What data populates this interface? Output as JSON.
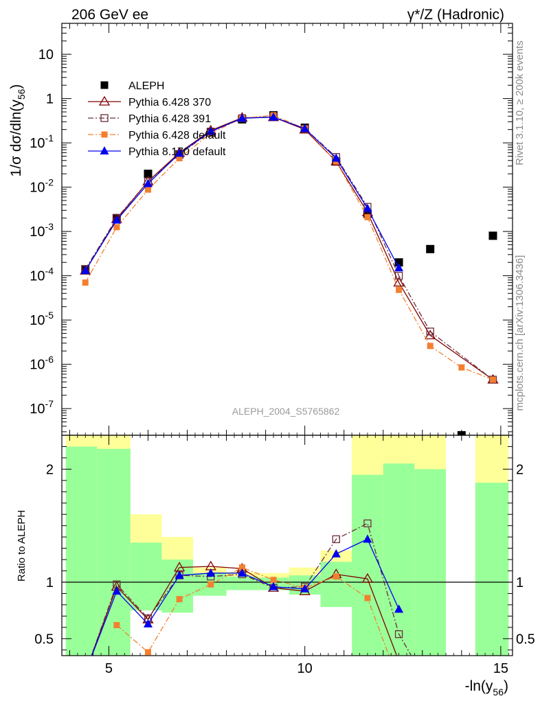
{
  "chart_data": {
    "type": "scatter",
    "title_left": "206 GeV ee",
    "title_right": "γ*/Z (Hadronic)",
    "ylabel": "1/σ  dσ/dln(y",
    "ylabel_sub": "56",
    "ylabel_close": ")",
    "xlabel": "-ln(y",
    "xlabel_sub": "56",
    "xlabel_close": ")",
    "ratio_ylabel": "Ratio to ALEPH",
    "watermark": "ALEPH_2004_S5765862",
    "side_label_top": "Rivet 3.1.10, ≥ 200k events",
    "side_label_bottom": "mcplots.cern.ch [arXiv:1306.3436]",
    "yscale": "log",
    "ylim": [
      2.5e-08,
      50
    ],
    "xlim": [
      3.8,
      15.3
    ],
    "ratio_ylim": [
      0.35,
      2.3
    ],
    "x_ticks": [
      5,
      10,
      15
    ],
    "x_tick_labels": [
      "5",
      "10",
      "15"
    ],
    "y_tick_labels": [
      "10",
      "1",
      "10^-1",
      "10^-2",
      "10^-3",
      "10^-4",
      "10^-5",
      "10^-6",
      "10^-7"
    ],
    "ratio_ticks": [
      0.5,
      1,
      2
    ],
    "ratio_tick_labels": [
      "0.5",
      "1",
      "2"
    ],
    "legend_position": "top-left",
    "series": [
      {
        "name": "ALEPH",
        "color": "#000000",
        "marker": "filled-square",
        "x": [
          4.4,
          5.2,
          6.0,
          6.8,
          7.6,
          8.4,
          9.2,
          10.0,
          10.8,
          11.6,
          12.4,
          13.2,
          14.0,
          14.8
        ],
        "y": [
          0.00014,
          0.002,
          0.02,
          0.055,
          0.17,
          0.34,
          0.42,
          0.22,
          0.038,
          0.0025,
          0.0002,
          0.0004,
          2.5e-08,
          0.0008
        ]
      },
      {
        "name": "Pythia 6.428 370",
        "color": "#800000",
        "marker": "open-triangle",
        "line": "solid",
        "x": [
          4.4,
          5.2,
          6.0,
          6.8,
          7.6,
          8.4,
          9.2,
          10.0,
          10.8,
          11.6,
          12.4,
          13.2,
          14.8
        ],
        "y": [
          0.00013,
          0.0019,
          0.0135,
          0.06,
          0.19,
          0.37,
          0.38,
          0.2,
          0.038,
          0.0027,
          7e-05,
          4.5e-06,
          4.5e-07
        ]
      },
      {
        "name": "Pythia 6.428 391",
        "color": "#6b2c3a",
        "marker": "open-square",
        "line": "dash-dot",
        "x": [
          4.4,
          5.2,
          6.0,
          6.8,
          7.6,
          8.4,
          9.2,
          10.0,
          10.8,
          11.6,
          12.4,
          13.2,
          14.8
        ],
        "y": [
          0.00014,
          0.002,
          0.0135,
          0.055,
          0.18,
          0.36,
          0.39,
          0.21,
          0.048,
          0.0036,
          0.0001,
          5.5e-06,
          4.5e-07
        ]
      },
      {
        "name": "Pythia 6.428 default",
        "color": "#f28030",
        "marker": "filled-small-square",
        "line": "dash-dot",
        "x": [
          4.4,
          5.2,
          6.0,
          6.8,
          7.6,
          8.4,
          9.2,
          10.0,
          10.8,
          11.6,
          12.4,
          13.2,
          14.0,
          14.8
        ],
        "y": [
          7e-05,
          0.00125,
          0.0088,
          0.045,
          0.165,
          0.36,
          0.42,
          0.21,
          0.038,
          0.0021,
          4.8e-05,
          2.6e-06,
          8.5e-07,
          4.5e-07
        ]
      },
      {
        "name": "Pythia 8.170 default",
        "color": "#0000ee",
        "marker": "filled-triangle",
        "line": "solid",
        "x": [
          4.4,
          5.2,
          6.0,
          6.8,
          7.6,
          8.4,
          9.2,
          10.0,
          10.8,
          11.6,
          12.4
        ],
        "y": [
          0.00013,
          0.0018,
          0.012,
          0.058,
          0.18,
          0.36,
          0.38,
          0.21,
          0.045,
          0.0033,
          0.00015
        ]
      }
    ],
    "ratio_series": [
      {
        "name": "Pythia 6.428 370",
        "x": [
          4.4,
          5.2,
          6.0,
          6.8,
          7.6,
          8.4,
          9.2,
          10.0,
          10.8,
          11.6,
          12.4
        ],
        "y": [
          0.2,
          0.96,
          0.67,
          1.13,
          1.14,
          1.12,
          0.95,
          0.92,
          1.07,
          1.03,
          0.3
        ]
      },
      {
        "name": "Pythia 6.428 391",
        "x": [
          4.4,
          5.2,
          6.0,
          6.8,
          7.6,
          8.4,
          9.2,
          10.0,
          10.8,
          11.6,
          12.4,
          12.8
        ],
        "y": [
          0.2,
          0.98,
          0.68,
          1.06,
          1.05,
          1.07,
          0.95,
          0.96,
          1.38,
          1.52,
          0.54,
          0.3
        ]
      },
      {
        "name": "Pythia 6.428 default",
        "x": [
          5.2,
          6.0,
          6.8,
          7.6,
          8.4,
          9.2,
          10.0,
          10.8,
          11.6,
          12.2
        ],
        "y": [
          0.62,
          0.38,
          0.85,
          0.98,
          1.13,
          1.02,
          0.95,
          1.05,
          0.86,
          0.3
        ]
      },
      {
        "name": "Pythia 8.170 default",
        "x": [
          4.4,
          5.2,
          6.0,
          6.8,
          7.6,
          8.4,
          9.2,
          10.0,
          10.8,
          11.6,
          12.4
        ],
        "y": [
          0.2,
          0.92,
          0.63,
          1.06,
          1.08,
          1.08,
          0.96,
          0.94,
          1.25,
          1.38,
          0.76
        ]
      }
    ],
    "ratio_band_bins": [
      {
        "x0": 3.9,
        "x1": 4.7,
        "stat": 2.2,
        "syst": 2.3
      },
      {
        "x0": 4.7,
        "x1": 5.55,
        "stat": 2.18,
        "syst": 2.3
      },
      {
        "x0": 5.55,
        "x1": 6.35,
        "stat": 1.35,
        "syst": 1.6
      },
      {
        "x0": 6.35,
        "x1": 7.15,
        "stat": 1.2,
        "syst": 1.4
      },
      {
        "x0": 7.15,
        "x1": 8.0,
        "stat": 1.08,
        "syst": 1.13
      },
      {
        "x0": 8.0,
        "x1": 8.8,
        "stat": 1.05,
        "syst": 1.09
      },
      {
        "x0": 8.8,
        "x1": 9.6,
        "stat": 1.04,
        "syst": 1.08
      },
      {
        "x0": 9.6,
        "x1": 10.4,
        "stat": 1.06,
        "syst": 1.13
      },
      {
        "x0": 10.4,
        "x1": 11.2,
        "stat": 1.18,
        "syst": 1.28
      },
      {
        "x0": 11.2,
        "x1": 12.0,
        "stat": 1.95,
        "syst": 2.3
      },
      {
        "x0": 12.0,
        "x1": 12.8,
        "stat": 2.05,
        "syst": 2.3
      },
      {
        "x0": 12.8,
        "x1": 13.6,
        "stat": 2.0,
        "syst": 2.3
      },
      {
        "x0": 14.35,
        "x1": 15.2,
        "stat": 1.88,
        "syst": 2.3
      }
    ],
    "ratio_band_lower": [
      {
        "x0": 5.55,
        "x1": 6.35,
        "lo": 0.75
      },
      {
        "x0": 6.35,
        "x1": 7.15,
        "lo": 0.73
      },
      {
        "x0": 7.15,
        "x1": 8.0,
        "lo": 0.88
      },
      {
        "x0": 8.0,
        "x1": 8.8,
        "lo": 0.93
      },
      {
        "x0": 8.8,
        "x1": 9.6,
        "lo": 0.93
      },
      {
        "x0": 9.6,
        "x1": 10.4,
        "lo": 0.89
      },
      {
        "x0": 10.4,
        "x1": 11.2,
        "lo": 0.78
      }
    ]
  }
}
